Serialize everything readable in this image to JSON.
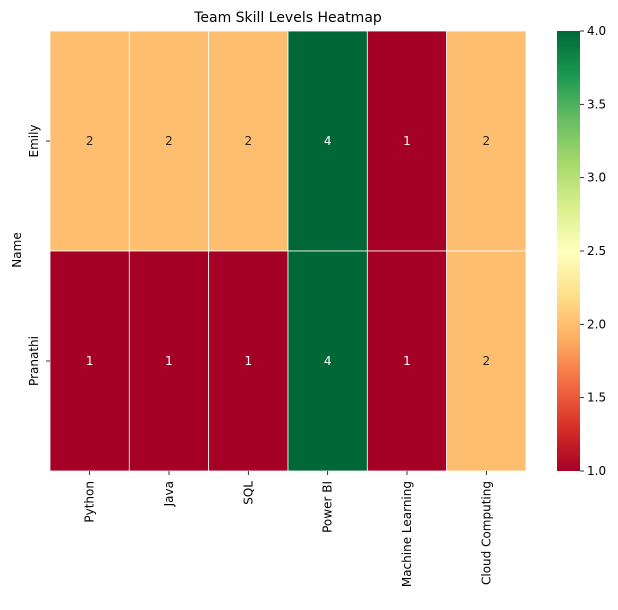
{
  "chart_data": {
    "type": "heatmap",
    "title": "Team Skill Levels Heatmap",
    "ylabel": "Name",
    "xlabel": "",
    "rows": [
      "Emily",
      "Pranathi"
    ],
    "columns": [
      "Python",
      "Java",
      "SQL",
      "Power BI",
      "Machine Learning",
      "Cloud Computing"
    ],
    "values": [
      [
        2,
        2,
        2,
        4,
        1,
        2
      ],
      [
        1,
        1,
        1,
        4,
        1,
        2
      ]
    ],
    "colormap": "RdYlGn",
    "vmin": 1.0,
    "vmax": 4.0,
    "colorbar_ticks": [
      "1.0",
      "1.5",
      "2.0",
      "2.5",
      "3.0",
      "3.5",
      "4.0"
    ],
    "annotated": true
  }
}
